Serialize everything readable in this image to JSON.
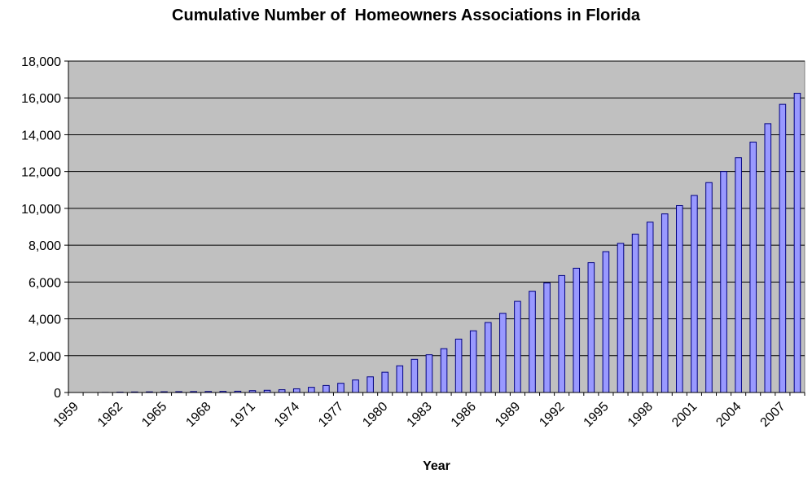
{
  "chart_data": {
    "type": "bar",
    "title": "Cumulative Number of  Homeowners Associations in Florida",
    "xlabel": "Year",
    "ylabel": "",
    "ylim": [
      0,
      18000
    ],
    "yticks": [
      "0",
      "2,000",
      "4,000",
      "6,000",
      "8,000",
      "10,000",
      "12,000",
      "14,000",
      "16,000",
      "18,000"
    ],
    "xtick_labels": [
      "1959",
      "1962",
      "1965",
      "1968",
      "1971",
      "1974",
      "1977",
      "1980",
      "1983",
      "1986",
      "1989",
      "1992",
      "1995",
      "1998",
      "2001",
      "2004",
      "2007"
    ],
    "categories": [
      "1959",
      "1960",
      "1961",
      "1962",
      "1963",
      "1964",
      "1965",
      "1966",
      "1967",
      "1968",
      "1969",
      "1970",
      "1971",
      "1972",
      "1973",
      "1974",
      "1975",
      "1976",
      "1977",
      "1978",
      "1979",
      "1980",
      "1981",
      "1982",
      "1983",
      "1984",
      "1985",
      "1986",
      "1987",
      "1988",
      "1989",
      "1990",
      "1991",
      "1992",
      "1993",
      "1994",
      "1995",
      "1996",
      "1997",
      "1998",
      "1999",
      "2000",
      "2001",
      "2002",
      "2003",
      "2004",
      "2005",
      "2006",
      "2007",
      "2008"
    ],
    "values": [
      0,
      0,
      5,
      20,
      30,
      35,
      40,
      45,
      50,
      55,
      60,
      70,
      100,
      120,
      150,
      200,
      280,
      380,
      500,
      680,
      850,
      1100,
      1450,
      1800,
      2050,
      2380,
      2900,
      3350,
      3800,
      4300,
      4950,
      5500,
      5950,
      6350,
      6750,
      7050,
      7650,
      8100,
      8600,
      9250,
      9700,
      10150,
      10700,
      11400,
      12000,
      12750,
      13600,
      14600,
      15650,
      16250
    ],
    "grid": true,
    "legend": "none",
    "colors": {
      "bar_fill": "#9999ff",
      "bar_edge": "#000080",
      "plot_bg": "#c0c0c0",
      "grid": "#000000"
    }
  }
}
